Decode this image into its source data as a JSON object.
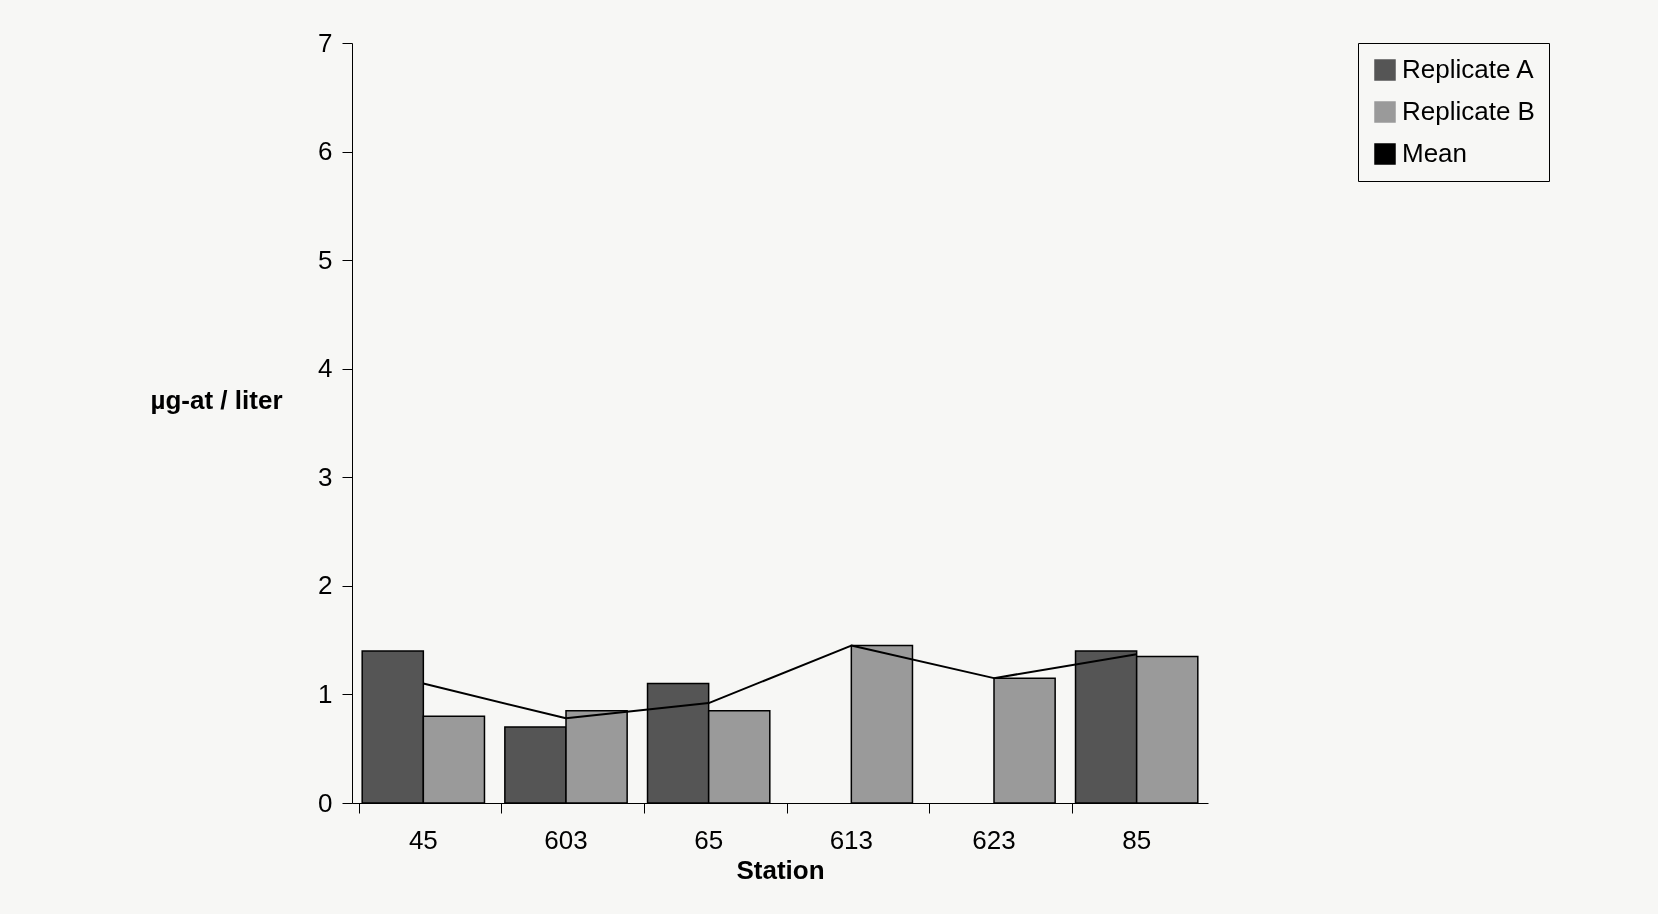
{
  "chart_data": {
    "type": "bar",
    "xlabel": "Station",
    "ylabel": "µg-at / liter",
    "categories": [
      "45",
      "603",
      "65",
      "613",
      "623",
      "85"
    ],
    "series": [
      {
        "name": "Replicate A",
        "color": "#555555",
        "values": [
          1.4,
          0.7,
          1.1,
          null,
          null,
          1.4
        ]
      },
      {
        "name": "Replicate B",
        "color": "#9a9a9a",
        "values": [
          0.8,
          0.85,
          0.85,
          1.45,
          1.15,
          1.35
        ]
      },
      {
        "name": "Mean",
        "type": "line",
        "color": "#000000",
        "values": [
          1.1,
          0.78,
          0.92,
          1.45,
          1.15,
          1.37
        ]
      }
    ],
    "ylim": [
      0,
      7
    ],
    "yticks": [
      0,
      1,
      2,
      3,
      4,
      5,
      6,
      7
    ],
    "grid": false,
    "legend": "right",
    "marker": "none",
    "line_style": "solid"
  }
}
